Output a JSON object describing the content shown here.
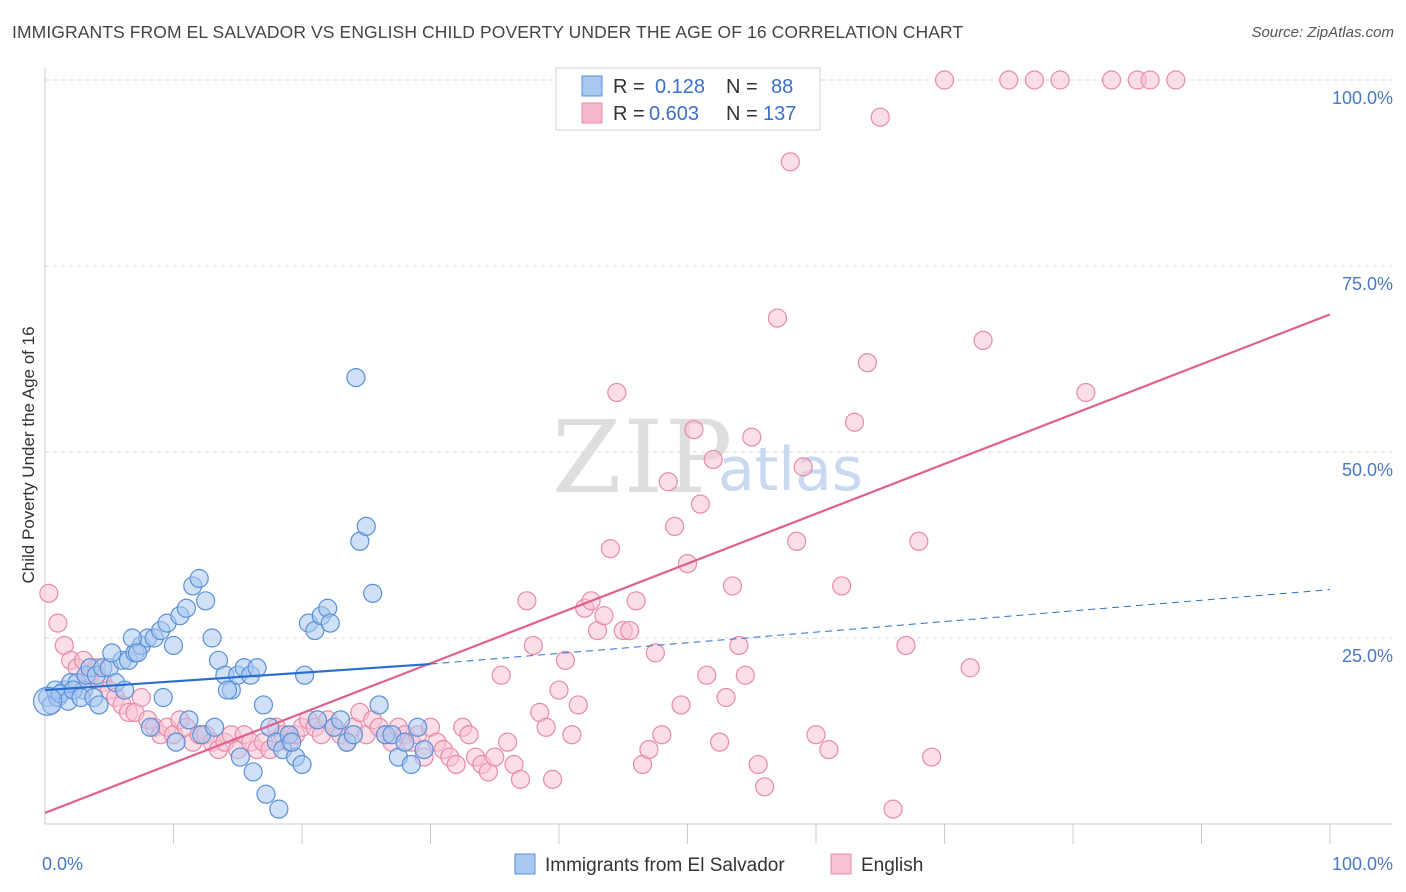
{
  "header": {
    "title": "IMMIGRANTS FROM EL SALVADOR VS ENGLISH CHILD POVERTY UNDER THE AGE OF 16 CORRELATION CHART",
    "source": "Source: ZipAtlas.com"
  },
  "watermark": {
    "zip": "ZIP",
    "atlas": "atlas"
  },
  "legend_box": {
    "rows": [
      {
        "r_label": "R =",
        "r_value": "0.128",
        "n_label": "N =",
        "n_value": "88",
        "color": "#a9c8f0"
      },
      {
        "r_label": "R =",
        "r_value": "0.603",
        "n_label": "N =",
        "n_value": "137",
        "color": "#f5b8cb"
      }
    ]
  },
  "colors": {
    "blue_fill": "#a9c8f0",
    "blue_stroke": "#5a8fd8",
    "blue_line": "#2a6fd0",
    "pink_fill": "#f7c2d2",
    "pink_stroke": "#e88aa8",
    "pink_line": "#e0608a",
    "grid": "#d9d9d9",
    "tick": "#4a78c8"
  },
  "chart_data": {
    "type": "scatter",
    "title": "IMMIGRANTS FROM EL SALVADOR VS ENGLISH CHILD POVERTY UNDER THE AGE OF 16 CORRELATION CHART",
    "xlabel": "",
    "ylabel": "Child Poverty Under the Age of 16",
    "xlim": [
      0,
      100
    ],
    "ylim": [
      0,
      100
    ],
    "x_tick_labels": [
      {
        "value": 0,
        "label": "0.0%"
      },
      {
        "value": 100,
        "label": "100.0%"
      }
    ],
    "y_tick_labels": [
      {
        "value": 25,
        "label": "25.0%"
      },
      {
        "value": 50,
        "label": "50.0%"
      },
      {
        "value": 75,
        "label": "75.0%"
      },
      {
        "value": 100,
        "label": "100.0%"
      }
    ],
    "x_minor_ticks": [
      10,
      20,
      30,
      40,
      50,
      60,
      70,
      80,
      90,
      100
    ],
    "legend": [
      "Immigrants from El Salvador",
      "English"
    ],
    "series": [
      {
        "name": "Immigrants from El Salvador",
        "R": 0.128,
        "N": 88,
        "trend_solid": [
          [
            0,
            18.0
          ],
          [
            30,
            21.5
          ]
        ],
        "trend_dashed": [
          [
            30,
            21.5
          ],
          [
            100,
            31.5
          ]
        ],
        "points": [
          [
            0.2,
            17
          ],
          [
            0.5,
            16
          ],
          [
            1,
            17
          ],
          [
            1.5,
            18
          ],
          [
            2,
            19
          ],
          [
            2.5,
            19
          ],
          [
            3,
            18
          ],
          [
            0.8,
            18
          ],
          [
            1.2,
            17.5
          ],
          [
            1.8,
            16.5
          ],
          [
            2.2,
            18
          ],
          [
            2.8,
            17
          ],
          [
            3.2,
            20
          ],
          [
            3.5,
            21
          ],
          [
            4,
            20
          ],
          [
            4.5,
            21
          ],
          [
            5,
            21
          ],
          [
            5.5,
            19
          ],
          [
            6,
            22
          ],
          [
            6.5,
            22
          ],
          [
            7,
            23
          ],
          [
            7.5,
            24
          ],
          [
            8,
            25
          ],
          [
            8.5,
            25
          ],
          [
            9,
            26
          ],
          [
            9.5,
            27
          ],
          [
            10,
            24
          ],
          [
            10.5,
            28
          ],
          [
            11,
            29
          ],
          [
            11.5,
            32
          ],
          [
            12,
            33
          ],
          [
            12.5,
            30
          ],
          [
            13,
            25
          ],
          [
            13.5,
            22
          ],
          [
            14,
            20
          ],
          [
            14.5,
            18
          ],
          [
            15,
            20
          ],
          [
            15.5,
            21
          ],
          [
            16,
            20
          ],
          [
            16.5,
            21
          ],
          [
            17,
            16
          ],
          [
            17.5,
            13
          ],
          [
            18,
            11
          ],
          [
            18.5,
            10
          ],
          [
            19,
            12
          ],
          [
            19.5,
            9
          ],
          [
            20,
            8
          ],
          [
            20.5,
            27
          ],
          [
            21,
            26
          ],
          [
            21.5,
            28
          ],
          [
            22,
            29
          ],
          [
            22.5,
            13
          ],
          [
            23,
            14
          ],
          [
            23.5,
            11
          ],
          [
            24,
            12
          ],
          [
            24.5,
            38
          ],
          [
            25,
            40
          ],
          [
            25.5,
            31
          ],
          [
            26,
            16
          ],
          [
            26.5,
            12
          ],
          [
            27,
            12
          ],
          [
            27.5,
            9
          ],
          [
            28,
            11
          ],
          [
            28.5,
            8
          ],
          [
            29,
            13
          ],
          [
            29.5,
            10
          ],
          [
            3.8,
            17
          ],
          [
            4.2,
            16
          ],
          [
            5.2,
            23
          ],
          [
            6.2,
            18
          ],
          [
            6.8,
            25
          ],
          [
            7.2,
            23
          ],
          [
            8.2,
            13
          ],
          [
            9.2,
            17
          ],
          [
            10.2,
            11
          ],
          [
            11.2,
            14
          ],
          [
            12.2,
            12
          ],
          [
            13.2,
            13
          ],
          [
            14.2,
            18
          ],
          [
            15.2,
            9
          ],
          [
            16.2,
            7
          ],
          [
            17.2,
            4
          ],
          [
            18.2,
            2
          ],
          [
            19.2,
            11
          ],
          [
            20.2,
            20
          ],
          [
            21.2,
            14
          ],
          [
            22.2,
            27
          ],
          [
            24.2,
            60
          ]
        ]
      },
      {
        "name": "English",
        "R": 0.603,
        "N": 137,
        "trend": [
          [
            0,
            1.5
          ],
          [
            100,
            68.5
          ]
        ],
        "points": [
          [
            0.3,
            31
          ],
          [
            1,
            27
          ],
          [
            1.5,
            24
          ],
          [
            2,
            22
          ],
          [
            2.5,
            21
          ],
          [
            3,
            22
          ],
          [
            3.5,
            20
          ],
          [
            4,
            21
          ],
          [
            4.5,
            19
          ],
          [
            5,
            18
          ],
          [
            5.5,
            17
          ],
          [
            6,
            16
          ],
          [
            6.5,
            15
          ],
          [
            7,
            15
          ],
          [
            7.5,
            17
          ],
          [
            8,
            14
          ],
          [
            8.5,
            13
          ],
          [
            9,
            12
          ],
          [
            9.5,
            13
          ],
          [
            10,
            12
          ],
          [
            10.5,
            14
          ],
          [
            11,
            13
          ],
          [
            11.5,
            11
          ],
          [
            12,
            12
          ],
          [
            12.5,
            12
          ],
          [
            13,
            11
          ],
          [
            13.5,
            10
          ],
          [
            14,
            11
          ],
          [
            14.5,
            12
          ],
          [
            15,
            10
          ],
          [
            15.5,
            12
          ],
          [
            16,
            11
          ],
          [
            16.5,
            10
          ],
          [
            17,
            11
          ],
          [
            17.5,
            10
          ],
          [
            18,
            13
          ],
          [
            18.5,
            12
          ],
          [
            19,
            11
          ],
          [
            19.5,
            12
          ],
          [
            20,
            13
          ],
          [
            20.5,
            14
          ],
          [
            21,
            13
          ],
          [
            21.5,
            12
          ],
          [
            22,
            14
          ],
          [
            22.5,
            13
          ],
          [
            23,
            12
          ],
          [
            23.5,
            11
          ],
          [
            24,
            13
          ],
          [
            24.5,
            15
          ],
          [
            25,
            12
          ],
          [
            25.5,
            14
          ],
          [
            26,
            13
          ],
          [
            26.5,
            12
          ],
          [
            27,
            11
          ],
          [
            27.5,
            13
          ],
          [
            28,
            12
          ],
          [
            28.5,
            11
          ],
          [
            29,
            12
          ],
          [
            29.5,
            9
          ],
          [
            30,
            13
          ],
          [
            30.5,
            11
          ],
          [
            31,
            10
          ],
          [
            31.5,
            9
          ],
          [
            32,
            8
          ],
          [
            32.5,
            13
          ],
          [
            33,
            12
          ],
          [
            33.5,
            9
          ],
          [
            34,
            8
          ],
          [
            34.5,
            7
          ],
          [
            35,
            9
          ],
          [
            35.5,
            20
          ],
          [
            36,
            11
          ],
          [
            36.5,
            8
          ],
          [
            37,
            6
          ],
          [
            37.5,
            30
          ],
          [
            38,
            24
          ],
          [
            38.5,
            15
          ],
          [
            39,
            13
          ],
          [
            39.5,
            6
          ],
          [
            40,
            18
          ],
          [
            40.5,
            22
          ],
          [
            41,
            12
          ],
          [
            41.5,
            16
          ],
          [
            42,
            29
          ],
          [
            42.5,
            30
          ],
          [
            43,
            26
          ],
          [
            43.5,
            28
          ],
          [
            44,
            37
          ],
          [
            44.5,
            58
          ],
          [
            45,
            26
          ],
          [
            45.5,
            26
          ],
          [
            46,
            30
          ],
          [
            46.5,
            8
          ],
          [
            47,
            10
          ],
          [
            47.5,
            23
          ],
          [
            48,
            12
          ],
          [
            48.5,
            46
          ],
          [
            49,
            40
          ],
          [
            49.5,
            16
          ],
          [
            50,
            35
          ],
          [
            50.5,
            53
          ],
          [
            51,
            43
          ],
          [
            51.5,
            20
          ],
          [
            52,
            49
          ],
          [
            52.5,
            11
          ],
          [
            53,
            17
          ],
          [
            53.5,
            32
          ],
          [
            54,
            24
          ],
          [
            54.5,
            20
          ],
          [
            55,
            52
          ],
          [
            55.5,
            8
          ],
          [
            56,
            5
          ],
          [
            57,
            68
          ],
          [
            58,
            89
          ],
          [
            58.5,
            38
          ],
          [
            59,
            48
          ],
          [
            60,
            12
          ],
          [
            61,
            10
          ],
          [
            62,
            32
          ],
          [
            63,
            54
          ],
          [
            64,
            62
          ],
          [
            65,
            95
          ],
          [
            66,
            2
          ],
          [
            67,
            24
          ],
          [
            68,
            38
          ],
          [
            69,
            9
          ],
          [
            70,
            100
          ],
          [
            72,
            21
          ],
          [
            73,
            65
          ],
          [
            75,
            100
          ],
          [
            77,
            100
          ],
          [
            79,
            100
          ],
          [
            81,
            58
          ],
          [
            83,
            100
          ],
          [
            85,
            100
          ],
          [
            86,
            100
          ],
          [
            88,
            100
          ]
        ]
      }
    ]
  }
}
